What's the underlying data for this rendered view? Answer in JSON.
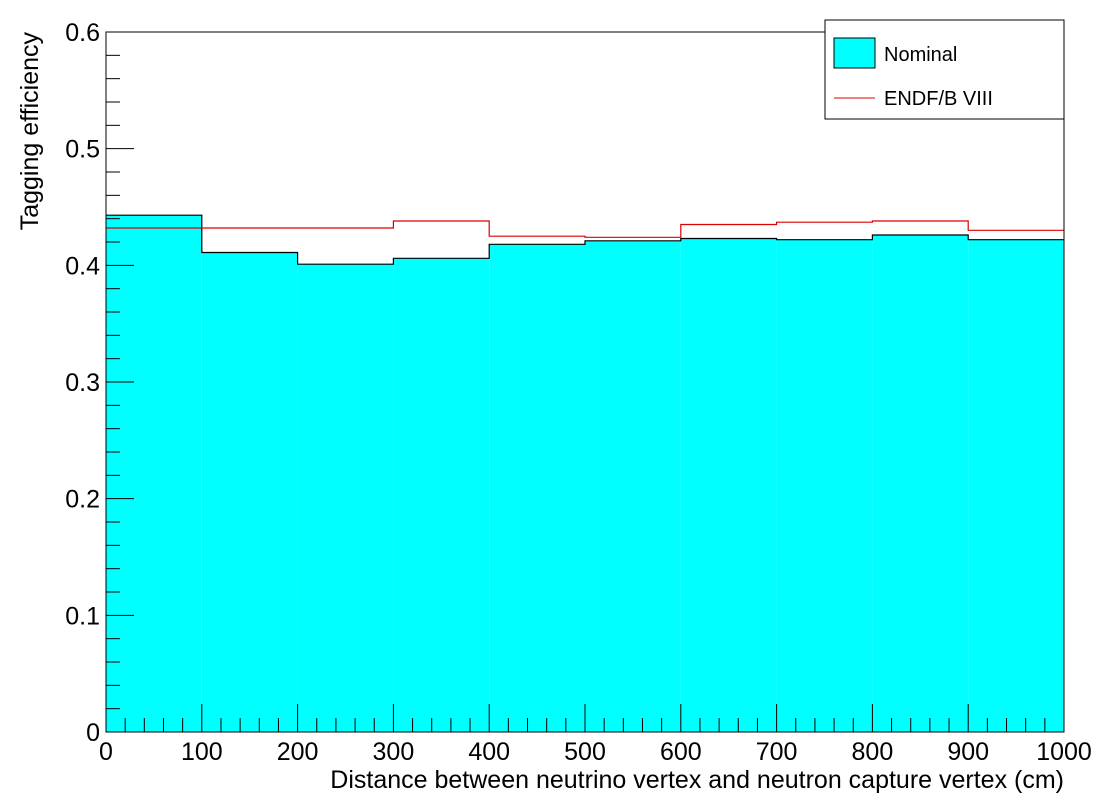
{
  "chart_data": {
    "type": "histogram",
    "xlabel": "Distance between neutrino vertex and neutron capture vertex (cm)",
    "ylabel": "Tagging efficiency",
    "xlim": [
      0,
      1000
    ],
    "ylim": [
      0,
      0.6
    ],
    "x_ticks": [
      "0",
      "100",
      "200",
      "300",
      "400",
      "500",
      "600",
      "700",
      "800",
      "900",
      "1000"
    ],
    "y_ticks": [
      "0",
      "0.1",
      "0.2",
      "0.3",
      "0.4",
      "0.5",
      "0.6"
    ],
    "bin_edges": [
      0,
      100,
      200,
      300,
      400,
      500,
      600,
      700,
      800,
      900,
      1000
    ],
    "grid": false,
    "legend_position": "top-right",
    "series": [
      {
        "name": "Nominal",
        "style": "filled",
        "fill_color": "#00ffff",
        "line_color": "#000000",
        "values": [
          0.443,
          0.411,
          0.401,
          0.406,
          0.418,
          0.421,
          0.423,
          0.422,
          0.426,
          0.422
        ]
      },
      {
        "name": "ENDF/B VIII",
        "style": "line",
        "line_color": "#dd0000",
        "values": [
          0.432,
          0.432,
          0.432,
          0.438,
          0.425,
          0.424,
          0.435,
          0.437,
          0.438,
          0.43
        ]
      }
    ]
  }
}
